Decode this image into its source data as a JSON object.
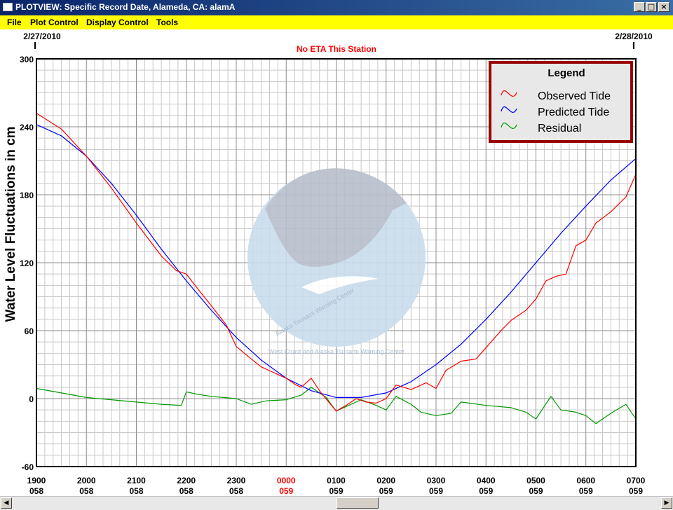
{
  "window": {
    "title": "PLOTVIEW: Specific Record Date, Alameda, CA: alamA",
    "min_glyph": "_",
    "max_glyph": "□",
    "close_glyph": "×"
  },
  "menu": {
    "items": [
      "File",
      "Plot Control",
      "Display Control",
      "Tools"
    ]
  },
  "header": {
    "date_left": "2/27/2010",
    "date_right": "2/28/2010",
    "notice": "No ETA This Station"
  },
  "logo_text": {
    "left": "Alaska Tsunami Warning Center",
    "right": "West Coast and Alaska Tsunami Warning Center"
  },
  "colors": {
    "observed": "#ff0000",
    "predicted": "#0000ff",
    "residual": "#009900",
    "legend_border": "#990000",
    "highlight": "#ff0000",
    "menu_bg": "#ffff00"
  },
  "chart_data": {
    "type": "line",
    "title": "No ETA This Station",
    "ylabel": "Water Level Fluctuations in cm",
    "xlabel": "",
    "ylim": [
      -60,
      300
    ],
    "xlim": [
      0,
      12
    ],
    "y_ticks": [
      -60,
      0,
      60,
      120,
      180,
      240,
      300
    ],
    "x_ticks": [
      {
        "time": "1900",
        "day": "058",
        "highlight": false
      },
      {
        "time": "2000",
        "day": "058",
        "highlight": false
      },
      {
        "time": "2100",
        "day": "058",
        "highlight": false
      },
      {
        "time": "2200",
        "day": "058",
        "highlight": false
      },
      {
        "time": "2300",
        "day": "058",
        "highlight": false
      },
      {
        "time": "0000",
        "day": "059",
        "highlight": true
      },
      {
        "time": "0100",
        "day": "059",
        "highlight": false
      },
      {
        "time": "0200",
        "day": "059",
        "highlight": false
      },
      {
        "time": "0300",
        "day": "059",
        "highlight": false
      },
      {
        "time": "0400",
        "day": "059",
        "highlight": false
      },
      {
        "time": "0500",
        "day": "059",
        "highlight": false
      },
      {
        "time": "0600",
        "day": "059",
        "highlight": false
      },
      {
        "time": "0700",
        "day": "059",
        "highlight": false
      }
    ],
    "grid": true,
    "legend": {
      "title": "Legend",
      "position": "top-right"
    },
    "series": [
      {
        "name": "Observed Tide",
        "color": "#ff0000",
        "x": [
          0,
          0.5,
          1,
          1.5,
          2,
          2.5,
          2.8,
          3,
          3.3,
          3.5,
          3.8,
          4,
          4.3,
          4.5,
          4.8,
          5,
          5.2,
          5.3,
          5.5,
          5.7,
          6,
          6.2,
          6.4,
          6.6,
          6.8,
          7,
          7.2,
          7.5,
          7.8,
          8,
          8.2,
          8.5,
          8.8,
          9,
          9.3,
          9.5,
          9.8,
          10,
          10.2,
          10.4,
          10.6,
          10.8,
          11,
          11.2,
          11.5,
          11.8,
          12
        ],
        "y": [
          252,
          238,
          214,
          186,
          155,
          126,
          113,
          110,
          93,
          82,
          65,
          46,
          35,
          28,
          22,
          18,
          12,
          10,
          18,
          5,
          -11,
          -6,
          0,
          -3,
          -4,
          0,
          12,
          8,
          14,
          9,
          25,
          33,
          35,
          45,
          60,
          69,
          78,
          88,
          104,
          108,
          110,
          135,
          140,
          155,
          165,
          178,
          198
        ]
      },
      {
        "name": "Predicted Tide",
        "color": "#0000ff",
        "x": [
          0,
          0.5,
          1,
          1.5,
          2,
          2.5,
          3,
          3.5,
          4,
          4.5,
          5,
          5.5,
          6,
          6.5,
          7,
          7.5,
          8,
          8.5,
          9,
          9.5,
          10,
          10.5,
          11,
          11.5,
          12
        ],
        "y": [
          242,
          232,
          214,
          190,
          162,
          132,
          104,
          78,
          54,
          34,
          18,
          7,
          1,
          1,
          5,
          15,
          30,
          48,
          70,
          94,
          120,
          146,
          170,
          193,
          212
        ]
      },
      {
        "name": "Residual",
        "color": "#009900",
        "x": [
          0,
          0.5,
          1,
          1.5,
          2,
          2.5,
          2.9,
          3,
          3.2,
          3.5,
          4,
          4.3,
          4.6,
          5,
          5.3,
          5.5,
          5.8,
          6,
          6.2,
          6.5,
          6.8,
          7,
          7.2,
          7.5,
          7.7,
          8,
          8.3,
          8.5,
          9,
          9.5,
          9.8,
          10,
          10.3,
          10.5,
          10.8,
          11,
          11.2,
          11.5,
          11.8,
          12
        ],
        "y": [
          9,
          5,
          1,
          -1,
          -3,
          -5,
          -6,
          6,
          4,
          2,
          0,
          -5,
          -2,
          -1,
          3,
          10,
          1,
          -11,
          -7,
          -1,
          -6,
          -10,
          2,
          -5,
          -12,
          -15,
          -13,
          -3,
          -6,
          -8,
          -12,
          -18,
          2,
          -10,
          -12,
          -15,
          -22,
          -13,
          -5,
          -18
        ]
      }
    ]
  }
}
